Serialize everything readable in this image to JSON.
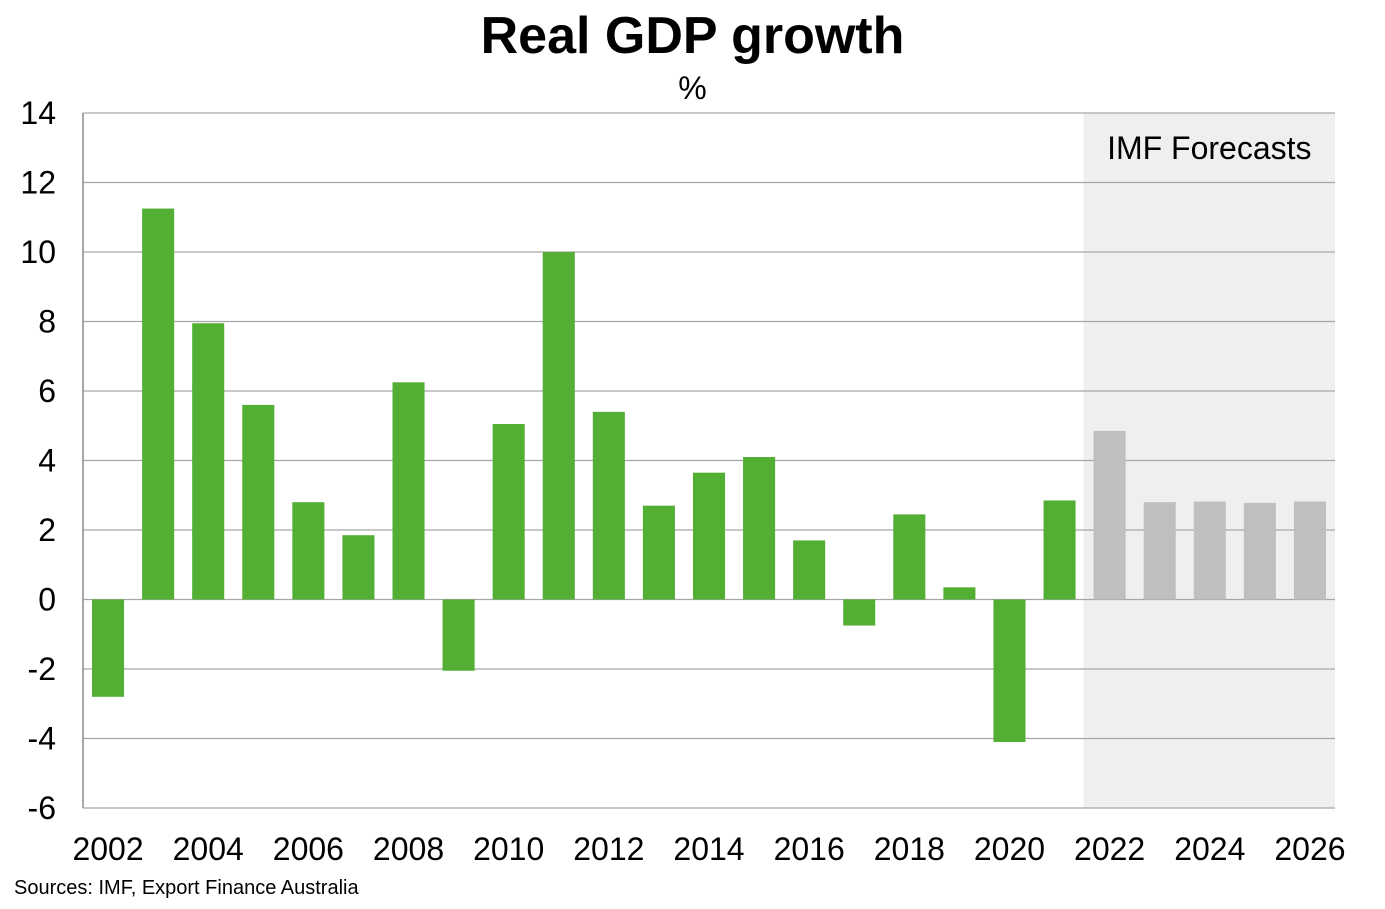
{
  "chart_data": {
    "type": "bar",
    "title": "Real GDP growth",
    "subtitle": "%",
    "xlabel": "",
    "ylabel": "",
    "ylim": [
      -6,
      14
    ],
    "yticks": [
      -6,
      -4,
      -2,
      0,
      2,
      4,
      6,
      8,
      10,
      12,
      14
    ],
    "x_tick_labels": [
      "2002",
      "2004",
      "2006",
      "2008",
      "2010",
      "2012",
      "2014",
      "2016",
      "2018",
      "2020",
      "2022",
      "2024",
      "2026"
    ],
    "grid": true,
    "categories": [
      "2002",
      "2003",
      "2004",
      "2005",
      "2006",
      "2007",
      "2008",
      "2009",
      "2010",
      "2011",
      "2012",
      "2013",
      "2014",
      "2015",
      "2016",
      "2017",
      "2018",
      "2019",
      "2020",
      "2021",
      "2022",
      "2023",
      "2024",
      "2025",
      "2026"
    ],
    "values": [
      -2.8,
      11.25,
      7.95,
      5.6,
      2.8,
      1.85,
      6.25,
      -2.05,
      5.05,
      10.0,
      5.4,
      2.7,
      3.65,
      4.1,
      1.7,
      -0.75,
      2.45,
      0.35,
      -4.1,
      2.85,
      4.85,
      2.8,
      2.82,
      2.78,
      2.82
    ],
    "forecast_from": "2022",
    "forecast_label": "IMF Forecasts",
    "colors": {
      "actual": "#53ae34",
      "forecast": "#bfbfbf",
      "forecast_band": "#efefef",
      "grid": "#a6a6a6",
      "axis": "#8c8c8c"
    }
  },
  "source": "Sources: IMF, Export Finance Australia"
}
